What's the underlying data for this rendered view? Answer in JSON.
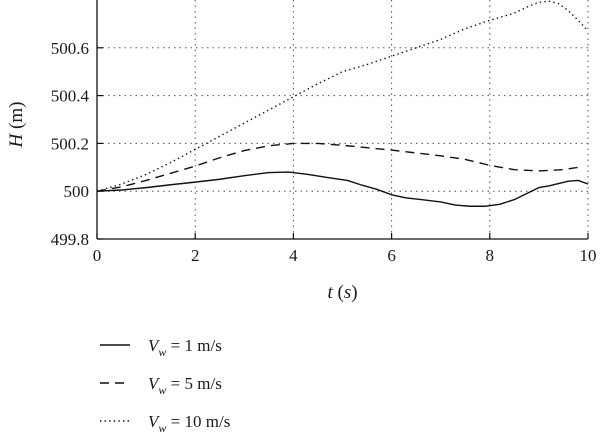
{
  "chart_data": {
    "type": "line",
    "xlabel": "t (s)",
    "ylabel": "H (m)",
    "xlim": [
      0,
      10
    ],
    "ylim": [
      499.8,
      500.8
    ],
    "x_ticks": [
      "0",
      "2",
      "4",
      "6",
      "8",
      "10"
    ],
    "y_ticks": [
      "499.8",
      "500",
      "500.2",
      "500.4",
      "500.6"
    ],
    "grid": true,
    "legend_position": "below",
    "series": [
      {
        "name": "V_w = 1 m/s",
        "legend_var": "V",
        "legend_sub": "w",
        "legend_rest": " = 1 m/s",
        "style": "solid",
        "x": [
          0,
          0.5,
          1,
          1.5,
          2,
          2.5,
          3,
          3.5,
          3.9,
          4.3,
          4.7,
          5.1,
          5.4,
          5.7,
          6,
          6.3,
          6.6,
          7,
          7.3,
          7.6,
          7.9,
          8.2,
          8.5,
          8.8,
          9,
          9.2,
          9.4,
          9.6,
          9.8,
          10
        ],
        "y": [
          500.0,
          500.005,
          500.015,
          500.027,
          500.038,
          500.05,
          500.065,
          500.078,
          500.08,
          500.07,
          500.057,
          500.045,
          500.025,
          500.008,
          499.985,
          499.972,
          499.965,
          499.955,
          499.942,
          499.937,
          499.937,
          499.945,
          499.965,
          499.995,
          500.015,
          500.022,
          500.032,
          500.042,
          500.045,
          500.03
        ]
      },
      {
        "name": "V_w = 5 m/s",
        "legend_var": "V",
        "legend_sub": "w",
        "legend_rest": " = 5 m/s",
        "style": "dashed",
        "x": [
          0,
          0.5,
          1,
          1.5,
          2,
          2.5,
          3,
          3.5,
          4,
          4.5,
          5,
          5.5,
          6,
          6.5,
          7,
          7.5,
          8,
          8.5,
          9,
          9.5,
          9.8
        ],
        "y": [
          500.0,
          500.018,
          500.045,
          500.075,
          500.105,
          500.14,
          500.17,
          500.19,
          500.2,
          500.2,
          500.192,
          500.182,
          500.172,
          500.16,
          500.148,
          500.133,
          500.108,
          500.09,
          500.085,
          500.09,
          500.1
        ]
      },
      {
        "name": "V_w = 10 m/s",
        "legend_var": "V",
        "legend_sub": "w",
        "legend_rest": " = 10 m/s",
        "style": "dotted",
        "x": [
          0,
          0.5,
          1,
          1.5,
          2,
          2.5,
          3,
          3.5,
          4,
          4.5,
          5,
          5.5,
          6,
          6.5,
          7,
          7.5,
          8,
          8.5,
          8.8,
          9,
          9.2,
          9.4,
          9.6,
          9.8,
          10
        ],
        "y": [
          500.0,
          500.03,
          500.07,
          500.12,
          500.175,
          500.23,
          500.285,
          500.34,
          500.395,
          500.45,
          500.5,
          500.53,
          500.565,
          500.6,
          500.635,
          500.68,
          500.715,
          500.745,
          500.775,
          500.79,
          500.795,
          500.785,
          500.755,
          500.715,
          500.67
        ]
      }
    ]
  }
}
